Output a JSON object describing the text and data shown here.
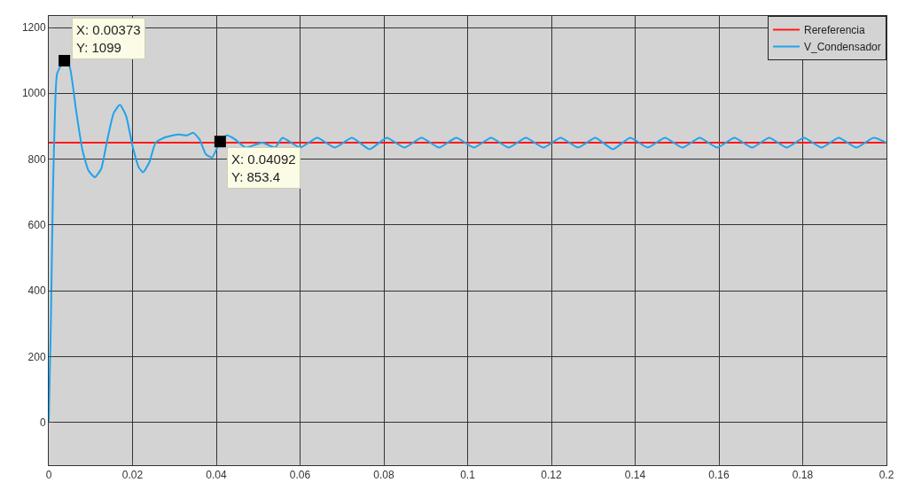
{
  "chart_data": {
    "type": "line",
    "xlim": [
      0,
      0.2
    ],
    "xticks": [
      0,
      0.02,
      0.04,
      0.06,
      0.08,
      0.1,
      0.12,
      0.14,
      0.16,
      0.18,
      0.2
    ],
    "ylim": [
      -130,
      1235
    ],
    "yticks": [
      0,
      200,
      400,
      600,
      800,
      1000,
      1200
    ],
    "grid": true,
    "legend": "top right",
    "series": [
      {
        "name": "Rereferencia",
        "color": "#ff1a1a",
        "x": [
          0,
          0.2
        ],
        "values": [
          850,
          850
        ]
      },
      {
        "name": "V_Condensador",
        "color": "#1fa3ec",
        "x": [
          0,
          0.0005,
          0.001,
          0.0015,
          0.002,
          0.00373,
          0.005,
          0.0065,
          0.008,
          0.0095,
          0.011,
          0.0125,
          0.014,
          0.0155,
          0.017,
          0.0185,
          0.02,
          0.0215,
          0.0225,
          0.024,
          0.0255,
          0.027,
          0.029,
          0.031,
          0.033,
          0.0345,
          0.036,
          0.0375,
          0.039,
          0.04092,
          0.0425,
          0.0445,
          0.047,
          0.051,
          0.054,
          0.0558,
          0.06,
          0.0641,
          0.0683,
          0.0724,
          0.0766,
          0.0807,
          0.0849,
          0.089,
          0.0932,
          0.0973,
          0.1015,
          0.1056,
          0.1098,
          0.1139,
          0.1181,
          0.1222,
          0.1264,
          0.1305,
          0.1347,
          0.1388,
          0.143,
          0.1471,
          0.1513,
          0.1554,
          0.1596,
          0.1637,
          0.1679,
          0.172,
          0.1762,
          0.1803,
          0.1845,
          0.1886,
          0.1928,
          0.1969,
          0.2
        ],
        "values": [
          0,
          300,
          700,
          950,
          1060,
          1099,
          1080,
          950,
          830,
          765,
          745,
          770,
          860,
          940,
          965,
          930,
          840,
          775,
          760,
          790,
          850,
          862,
          870,
          875,
          872,
          880,
          860,
          815,
          805,
          853.4,
          872,
          860,
          835,
          850,
          835,
          865,
          835,
          865,
          835,
          865,
          830,
          865,
          835,
          865,
          835,
          865,
          835,
          865,
          835,
          865,
          835,
          865,
          835,
          865,
          830,
          865,
          835,
          865,
          835,
          865,
          835,
          865,
          835,
          865,
          835,
          865,
          835,
          865,
          835,
          865,
          850
        ]
      }
    ],
    "annotations": [
      {
        "text": "X: 0.00373\nY: 1099",
        "x": 0.00373,
        "y": 1099
      },
      {
        "text": "X: 0.04092\nY: 853.4",
        "x": 0.04092,
        "y": 853.4
      }
    ]
  }
}
